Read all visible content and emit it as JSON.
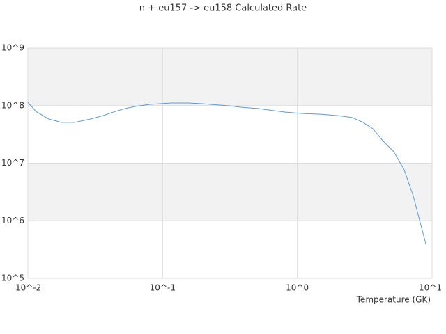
{
  "chart_data": {
    "type": "line",
    "title": "n + eu157 -> eu158 Calculated Rate",
    "x_label": "Temperature (GK)",
    "xlog": true,
    "ylog": true,
    "grid": true,
    "band_color": "#f2f2f2",
    "xlim": [
      0.01,
      10
    ],
    "ylim": [
      100000,
      1000000000
    ],
    "xticks": [
      {
        "value": 0.01,
        "label": "10^-2"
      },
      {
        "value": 0.1,
        "label": "10^-1"
      },
      {
        "value": 1,
        "label": "10^0"
      },
      {
        "value": 10,
        "label": "10^1"
      }
    ],
    "yticks": [
      {
        "value": 100000,
        "label": "10^5"
      },
      {
        "value": 1000000,
        "label": "10^6"
      },
      {
        "value": 10000000,
        "label": "10^7"
      },
      {
        "value": 100000000,
        "label": "10^8"
      },
      {
        "value": 1000000000,
        "label": "10^9"
      }
    ],
    "x": [
      0.01,
      0.0115,
      0.0143,
      0.0177,
      0.0222,
      0.0292,
      0.0362,
      0.0444,
      0.053,
      0.0634,
      0.0804,
      0.115,
      0.155,
      0.196,
      0.316,
      0.378,
      0.509,
      0.61,
      0.82,
      1.1,
      1.49,
      2.0,
      2.55,
      3.04,
      3.64,
      4.35,
      5.2,
      6.2,
      7.26,
      9.0
    ],
    "series": [
      {
        "color": "#5b9bd5",
        "values": [
          114000000,
          79000000,
          58500000,
          51000000,
          51000000,
          58500000,
          67000000,
          79000000,
          89000000,
          97000000,
          105000000,
          111000000,
          111000000,
          108000000,
          99000000,
          94000000,
          89000000,
          84000000,
          77000000,
          73000000,
          71000000,
          67000000,
          62000000,
          52000000,
          39600000,
          24000000,
          15800000,
          7700000,
          2670000,
          390000
        ]
      }
    ]
  }
}
